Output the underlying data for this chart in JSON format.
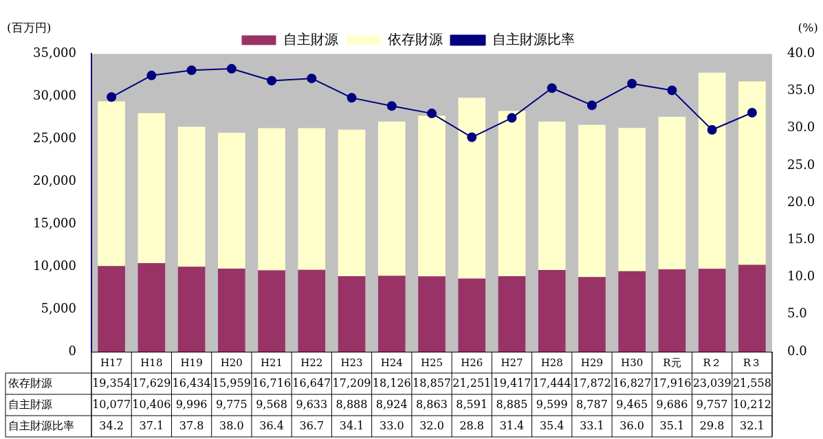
{
  "chart_data": {
    "type": "bar",
    "stacked": true,
    "ylabel": "(百万円)",
    "y2label": "(%)",
    "categories": [
      "H17",
      "H18",
      "H19",
      "H20",
      "H21",
      "H22",
      "H23",
      "H24",
      "H25",
      "H26",
      "H27",
      "H28",
      "H29",
      "H30",
      "R元",
      "R２",
      "R３"
    ],
    "series": [
      {
        "name": "自主財源",
        "color": "#993366",
        "values": [
          10077,
          10406,
          9996,
          9775,
          9568,
          9633,
          8888,
          8924,
          8863,
          8591,
          8885,
          9599,
          8787,
          9465,
          9686,
          9757,
          10212
        ],
        "value_labels": [
          "10,077",
          "10,406",
          "9,996",
          "9,775",
          "9,568",
          "9,633",
          "8,888",
          "8,924",
          "8,863",
          "8,591",
          "8,885",
          "9,599",
          "8,787",
          "9,465",
          "9,686",
          "9,757",
          "10,212"
        ]
      },
      {
        "name": "依存財源",
        "color": "#ffffcc",
        "values": [
          19354,
          17629,
          16434,
          15959,
          16716,
          16647,
          17209,
          18126,
          18857,
          21251,
          19417,
          17444,
          17872,
          16827,
          17916,
          23039,
          21558
        ],
        "value_labels": [
          "19,354",
          "17,629",
          "16,434",
          "15,959",
          "16,716",
          "16,647",
          "17,209",
          "18,126",
          "18,857",
          "21,251",
          "19,417",
          "17,444",
          "17,872",
          "16,827",
          "17,916",
          "23,039",
          "21,558"
        ]
      },
      {
        "name": "自主財源比率",
        "type": "line",
        "axis": "y2",
        "color": "#000080",
        "values": [
          34.2,
          37.1,
          37.8,
          38.0,
          36.4,
          36.7,
          34.1,
          33.0,
          32.0,
          28.8,
          31.4,
          35.4,
          33.1,
          36.0,
          35.1,
          29.8,
          32.1
        ],
        "value_labels": [
          "34.2",
          "37.1",
          "37.8",
          "38.0",
          "36.4",
          "36.7",
          "34.1",
          "33.0",
          "32.0",
          "28.8",
          "31.4",
          "35.4",
          "33.1",
          "36.0",
          "35.1",
          "29.8",
          "32.1"
        ]
      }
    ],
    "ylim": [
      0,
      35000
    ],
    "yticks": [
      {
        "value": 0,
        "label": "0"
      },
      {
        "value": 5000,
        "label": "5,000"
      },
      {
        "value": 10000,
        "label": "10,000"
      },
      {
        "value": 15000,
        "label": "15,000"
      },
      {
        "value": 20000,
        "label": "20,000"
      },
      {
        "value": 25000,
        "label": "25,000"
      },
      {
        "value": 30000,
        "label": "30,000"
      },
      {
        "value": 35000,
        "label": "35,000"
      }
    ],
    "y2lim": [
      0,
      40
    ],
    "y2ticks": [
      {
        "value": 0,
        "label": "0.0"
      },
      {
        "value": 5,
        "label": "5.0"
      },
      {
        "value": 10,
        "label": "10.0"
      },
      {
        "value": 15,
        "label": "15.0"
      },
      {
        "value": 20,
        "label": "20.0"
      },
      {
        "value": 25,
        "label": "25.0"
      },
      {
        "value": 30,
        "label": "30.0"
      },
      {
        "value": 35,
        "label": "35.0"
      },
      {
        "value": 40,
        "label": "40.0"
      }
    ],
    "grid": false,
    "legend": "top",
    "marker": "circle",
    "data_labels": true
  }
}
